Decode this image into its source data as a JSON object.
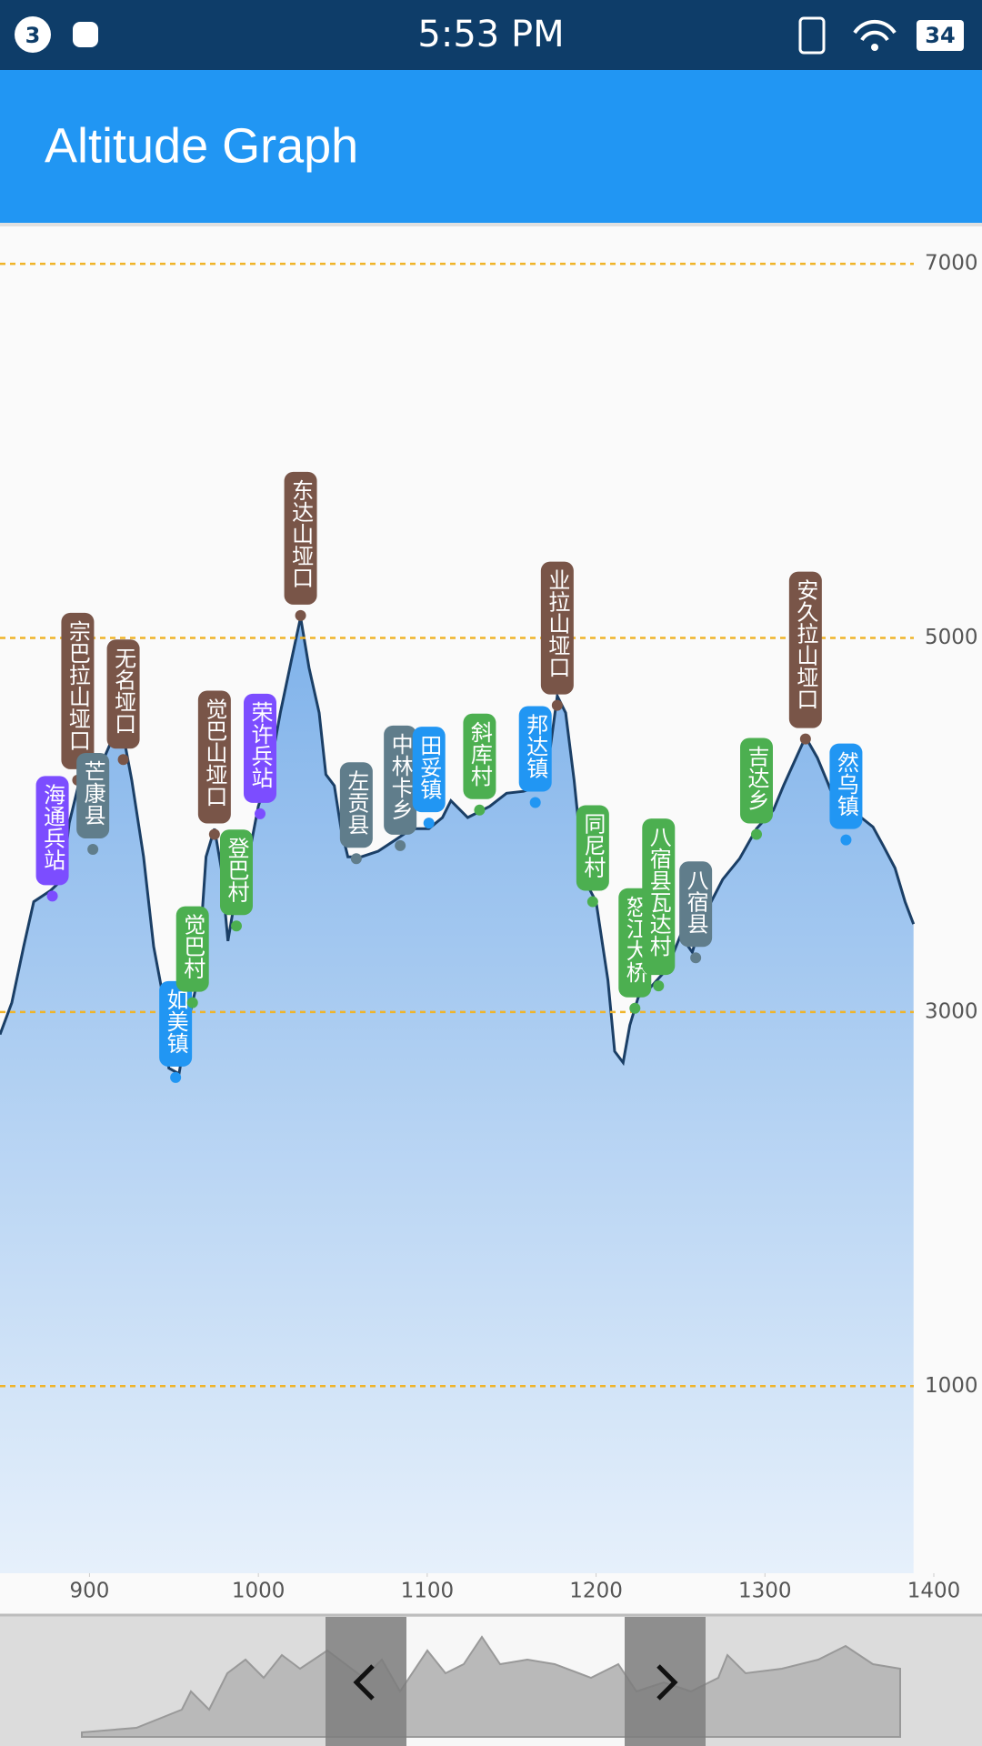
{
  "status_bar": {
    "notification_count": "3",
    "time": "5:53 PM",
    "battery": "34"
  },
  "app_bar": {
    "title": "Altitude Graph"
  },
  "chart_data": {
    "type": "area",
    "x": [
      847,
      854,
      861,
      867,
      877,
      884,
      888,
      895,
      903,
      913,
      920,
      925,
      932,
      938,
      943,
      947,
      953,
      958,
      964,
      969,
      974,
      978,
      982,
      987,
      993,
      1000,
      1007,
      1013,
      1020,
      1025,
      1030,
      1036,
      1040,
      1045,
      1049,
      1053,
      1061,
      1071,
      1081,
      1091,
      1101,
      1109,
      1114,
      1124,
      1137,
      1147,
      1157,
      1168,
      1173,
      1177,
      1182,
      1187,
      1193,
      1200,
      1207,
      1211,
      1216,
      1220,
      1225,
      1232,
      1242,
      1250,
      1257,
      1263,
      1275,
      1285,
      1295,
      1305,
      1311,
      1318,
      1324,
      1331,
      1337,
      1344,
      1357,
      1364,
      1370,
      1377,
      1383,
      1388
    ],
    "values": [
      2880,
      3050,
      3350,
      3590,
      3650,
      3710,
      4010,
      4270,
      4240,
      4450,
      4480,
      4240,
      3830,
      3350,
      3110,
      2700,
      2670,
      2930,
      3170,
      3830,
      3980,
      3770,
      3380,
      3650,
      3770,
      4100,
      4300,
      4600,
      4900,
      5110,
      4840,
      4600,
      4270,
      4210,
      3980,
      3830,
      3830,
      3860,
      3920,
      3980,
      3980,
      4040,
      4130,
      4040,
      4100,
      4170,
      4180,
      4210,
      4420,
      4690,
      4600,
      4240,
      3710,
      3590,
      3170,
      2790,
      2730,
      2930,
      3080,
      3130,
      3230,
      3410,
      3320,
      3500,
      3710,
      3820,
      3980,
      4080,
      4210,
      4350,
      4470,
      4360,
      4230,
      4070,
      4040,
      3990,
      3890,
      3770,
      3590,
      3470
    ],
    "xlim": [
      847,
      1400
    ],
    "ylim": [
      0,
      7200
    ],
    "xticks": [
      900,
      1000,
      1100,
      1200,
      1300,
      1400
    ],
    "yticks": [
      1000,
      3000,
      5000,
      7000
    ],
    "grid": true,
    "line_color": "#1b3f66",
    "fill_color": "#7fb2ea",
    "annotations": [
      {
        "text": "海通兵站",
        "x": 878,
        "y": 3620,
        "color": "#7c4dff"
      },
      {
        "text": "宗巴拉山垭口",
        "x": 893,
        "y": 4240,
        "color": "#795548"
      },
      {
        "text": "芒康县",
        "x": 902,
        "y": 3870,
        "color": "#607d8b"
      },
      {
        "text": "无名垭口",
        "x": 920,
        "y": 4350,
        "color": "#795548"
      },
      {
        "text": "如美镇",
        "x": 951,
        "y": 2650,
        "color": "#2196f3"
      },
      {
        "text": "觉巴村",
        "x": 961,
        "y": 3050,
        "color": "#4caf50"
      },
      {
        "text": "觉巴山垭口",
        "x": 974,
        "y": 3950,
        "color": "#795548"
      },
      {
        "text": "登巴村",
        "x": 987,
        "y": 3460,
        "color": "#4caf50"
      },
      {
        "text": "荣许兵站",
        "x": 1001,
        "y": 4060,
        "color": "#7c4dff"
      },
      {
        "text": "东达山垭口",
        "x": 1025,
        "y": 5120,
        "color": "#795548"
      },
      {
        "text": "左贡县",
        "x": 1058,
        "y": 3820,
        "color": "#607d8b"
      },
      {
        "text": "中林卡乡",
        "x": 1084,
        "y": 3890,
        "color": "#607d8b"
      },
      {
        "text": "田妥镇",
        "x": 1101,
        "y": 4010,
        "color": "#2196f3"
      },
      {
        "text": "斜库村",
        "x": 1131,
        "y": 4080,
        "color": "#4caf50"
      },
      {
        "text": "邦达镇",
        "x": 1164,
        "y": 4120,
        "color": "#2196f3"
      },
      {
        "text": "业拉山垭口",
        "x": 1177,
        "y": 4640,
        "color": "#795548"
      },
      {
        "text": "同尼村",
        "x": 1198,
        "y": 3590,
        "color": "#4caf50"
      },
      {
        "text": "怒江大桥",
        "x": 1223,
        "y": 3020,
        "color": "#4caf50"
      },
      {
        "text": "八宿县瓦达村",
        "x": 1237,
        "y": 3140,
        "color": "#4caf50"
      },
      {
        "text": "八宿县",
        "x": 1259,
        "y": 3290,
        "color": "#607d8b"
      },
      {
        "text": "吉达乡",
        "x": 1295,
        "y": 3950,
        "color": "#4caf50"
      },
      {
        "text": "安久拉山垭口",
        "x": 1324,
        "y": 4460,
        "color": "#795548"
      },
      {
        "text": "然乌镇",
        "x": 1348,
        "y": 3920,
        "color": "#2196f3"
      }
    ]
  }
}
